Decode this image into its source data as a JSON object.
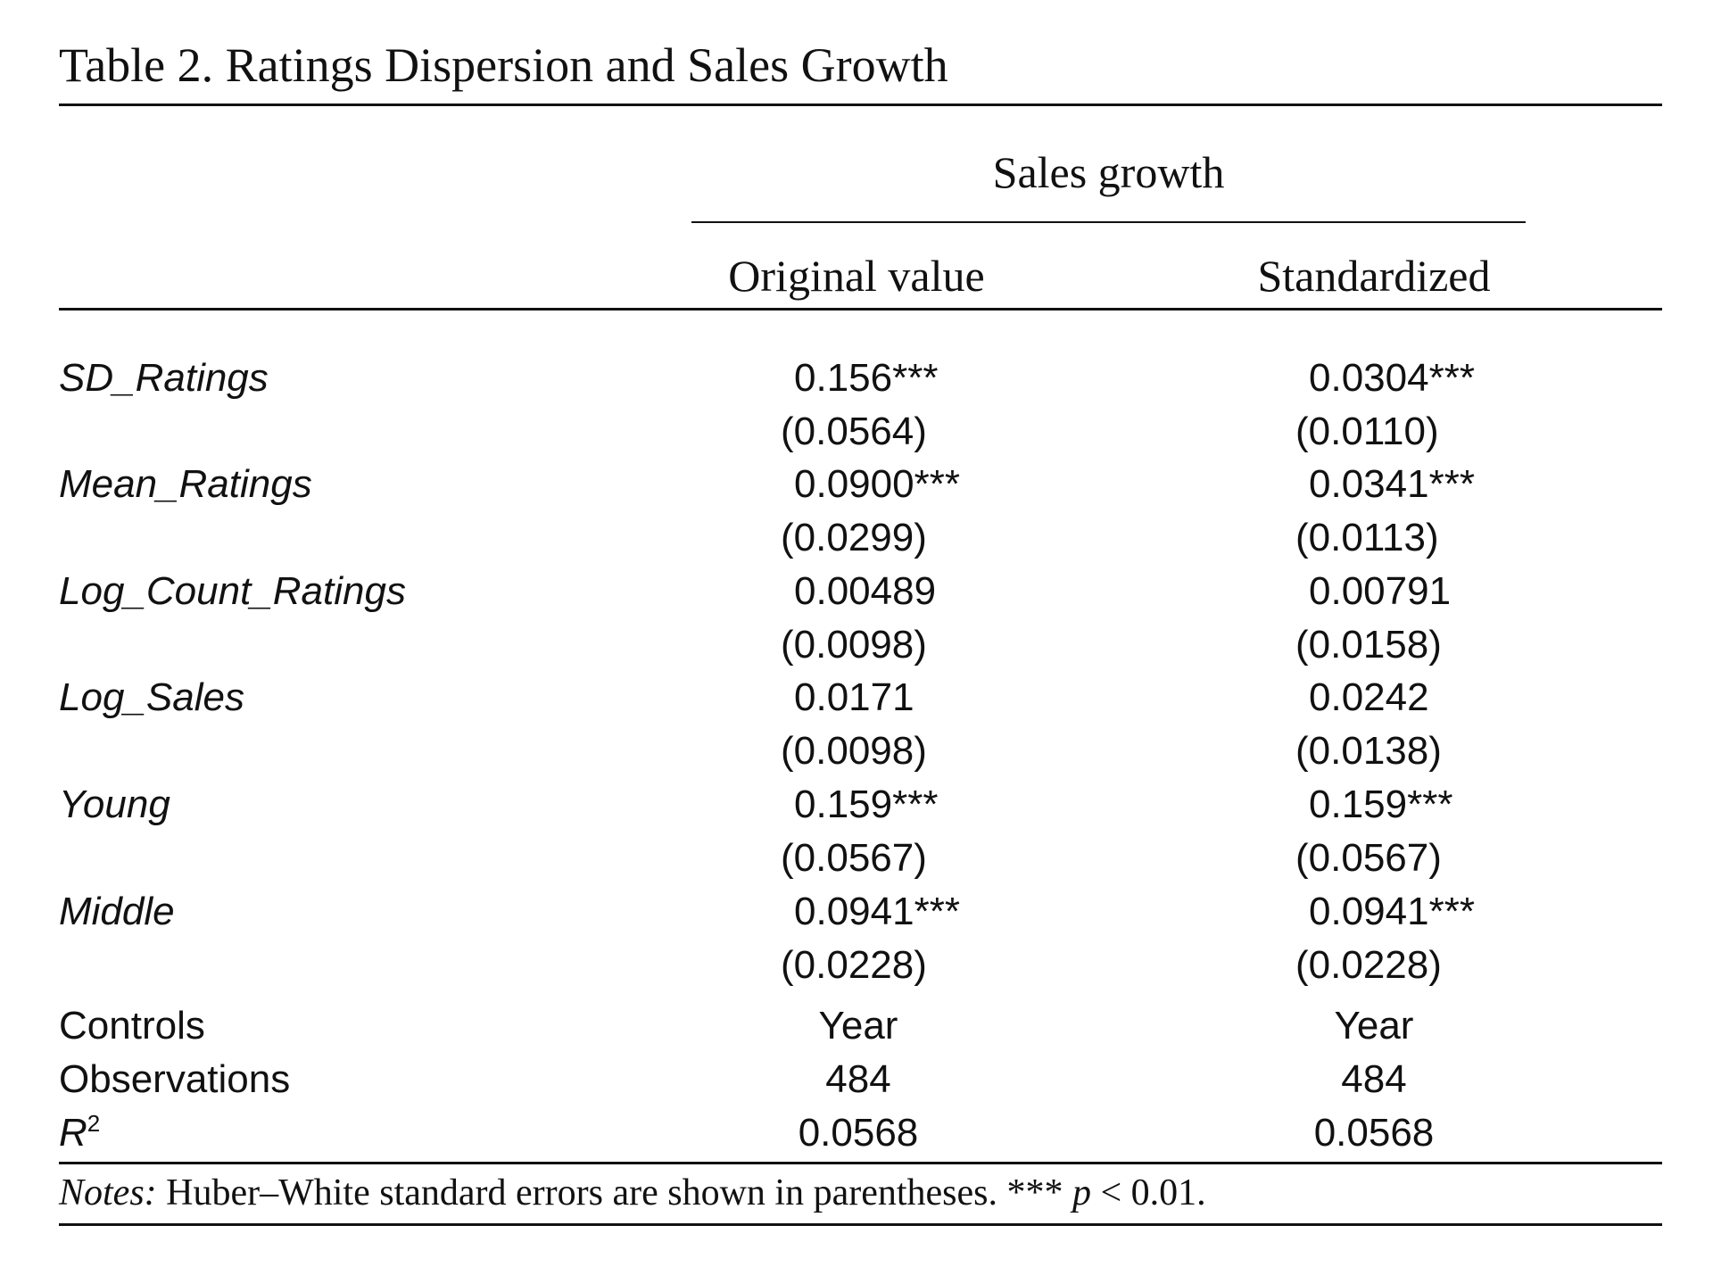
{
  "table": {
    "title": "Table 2. Ratings Dispersion and Sales Growth",
    "column_group": "Sales growth",
    "columns": [
      "Original value",
      "Standardized"
    ],
    "rows": [
      {
        "label": "SD_Ratings",
        "coef": [
          "0.156***",
          "0.0304***"
        ],
        "se": [
          "(0.0564)",
          "(0.0110)"
        ]
      },
      {
        "label": "Mean_Ratings",
        "coef": [
          "0.0900***",
          "0.0341***"
        ],
        "se": [
          "(0.0299)",
          "(0.0113)"
        ]
      },
      {
        "label": "Log_Count_Ratings",
        "coef": [
          "0.00489",
          "0.00791"
        ],
        "se": [
          "(0.0098)",
          "(0.0158)"
        ]
      },
      {
        "label": "Log_Sales",
        "coef": [
          "0.0171",
          "0.0242"
        ],
        "se": [
          "(0.0098)",
          "(0.0138)"
        ]
      },
      {
        "label": "Young",
        "coef": [
          "0.159***",
          "0.159***"
        ],
        "se": [
          "(0.0567)",
          "(0.0567)"
        ]
      },
      {
        "label": "Middle",
        "coef": [
          "0.0941***",
          "0.0941***"
        ],
        "se": [
          "(0.0228)",
          "(0.0228)"
        ]
      }
    ],
    "footer_rows": [
      {
        "label": "Controls",
        "values": [
          "Year",
          "Year"
        ]
      },
      {
        "label": "Observations",
        "values": [
          "484",
          "484"
        ]
      },
      {
        "label": "R",
        "label_sup": "2",
        "values": [
          "0.0568",
          "0.0568"
        ]
      }
    ],
    "notes_lead": "Notes:",
    "notes_text": " Huber–White standard errors are shown in parentheses. *** ",
    "notes_p": "p",
    "notes_tail": " < 0.01."
  }
}
